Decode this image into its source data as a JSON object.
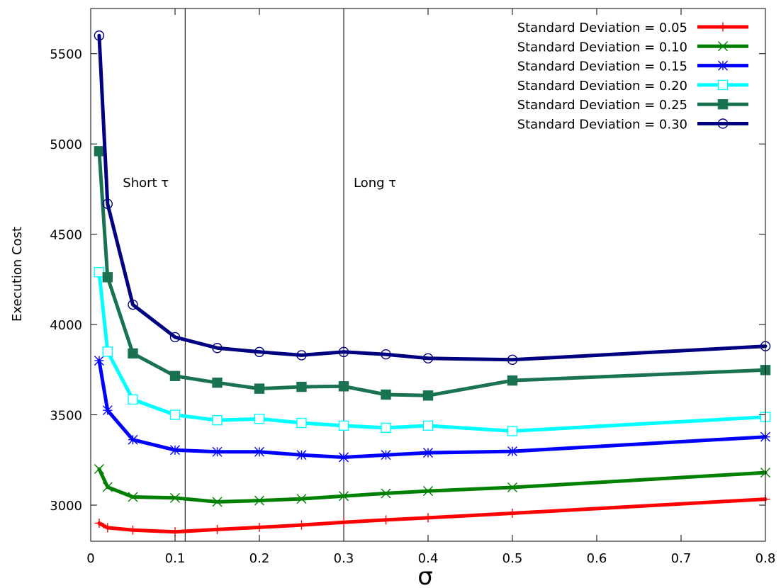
{
  "chart_data": {
    "type": "line",
    "title": "",
    "xlabel": "σ",
    "ylabel": "Execution Cost",
    "xlim": [
      0,
      0.8
    ],
    "ylim": [
      2800,
      5750
    ],
    "x_ticks": [
      0,
      0.1,
      0.2,
      0.3,
      0.4,
      0.5,
      0.6,
      0.7,
      0.8
    ],
    "x_tick_labels": [
      "0",
      "0.1",
      "0.2",
      "0.3",
      "0.4",
      "0.5",
      "0.6",
      "0.7",
      "0.8"
    ],
    "y_ticks": [
      3000,
      3500,
      4000,
      4500,
      5000,
      5500
    ],
    "y_tick_labels": [
      "3000",
      "3500",
      "4000",
      "4500",
      "5000",
      "5500"
    ],
    "grid": false,
    "legend_position": "top-right",
    "vlines": [
      {
        "x": 0.112,
        "label": "Short τ"
      },
      {
        "x": 0.3,
        "label": "Long τ"
      }
    ],
    "x": [
      0.01,
      0.02,
      0.05,
      0.1,
      0.15,
      0.2,
      0.25,
      0.3,
      0.35,
      0.4,
      0.5,
      0.8
    ],
    "series": [
      {
        "name": "Standard Deviation = 0.05",
        "color": "#ff0000",
        "marker": "plus",
        "values": [
          2900,
          2875,
          2862,
          2852,
          2865,
          2877,
          2890,
          2905,
          2918,
          2930,
          2955,
          3033
        ]
      },
      {
        "name": "Standard Deviation = 0.10",
        "color": "#008000",
        "marker": "cross",
        "values": [
          3200,
          3100,
          3045,
          3040,
          3018,
          3025,
          3035,
          3050,
          3065,
          3078,
          3098,
          3180
        ]
      },
      {
        "name": "Standard Deviation = 0.15",
        "color": "#0000ff",
        "marker": "star",
        "values": [
          3800,
          3525,
          3362,
          3305,
          3295,
          3295,
          3278,
          3265,
          3278,
          3290,
          3298,
          3378
        ]
      },
      {
        "name": "Standard Deviation = 0.20",
        "color": "#00ffff",
        "marker": "open-square",
        "values": [
          4290,
          3850,
          3585,
          3500,
          3470,
          3478,
          3455,
          3440,
          3428,
          3440,
          3410,
          3488
        ]
      },
      {
        "name": "Standard Deviation = 0.25",
        "color": "#1a7350",
        "marker": "filled-square",
        "values": [
          4960,
          4262,
          3840,
          3715,
          3678,
          3645,
          3655,
          3658,
          3612,
          3607,
          3690,
          3748
        ]
      },
      {
        "name": "Standard Deviation = 0.30",
        "color": "#000080",
        "marker": "open-circle",
        "values": [
          5600,
          4668,
          4110,
          3930,
          3870,
          3848,
          3830,
          3848,
          3835,
          3813,
          3805,
          3880
        ]
      }
    ]
  }
}
